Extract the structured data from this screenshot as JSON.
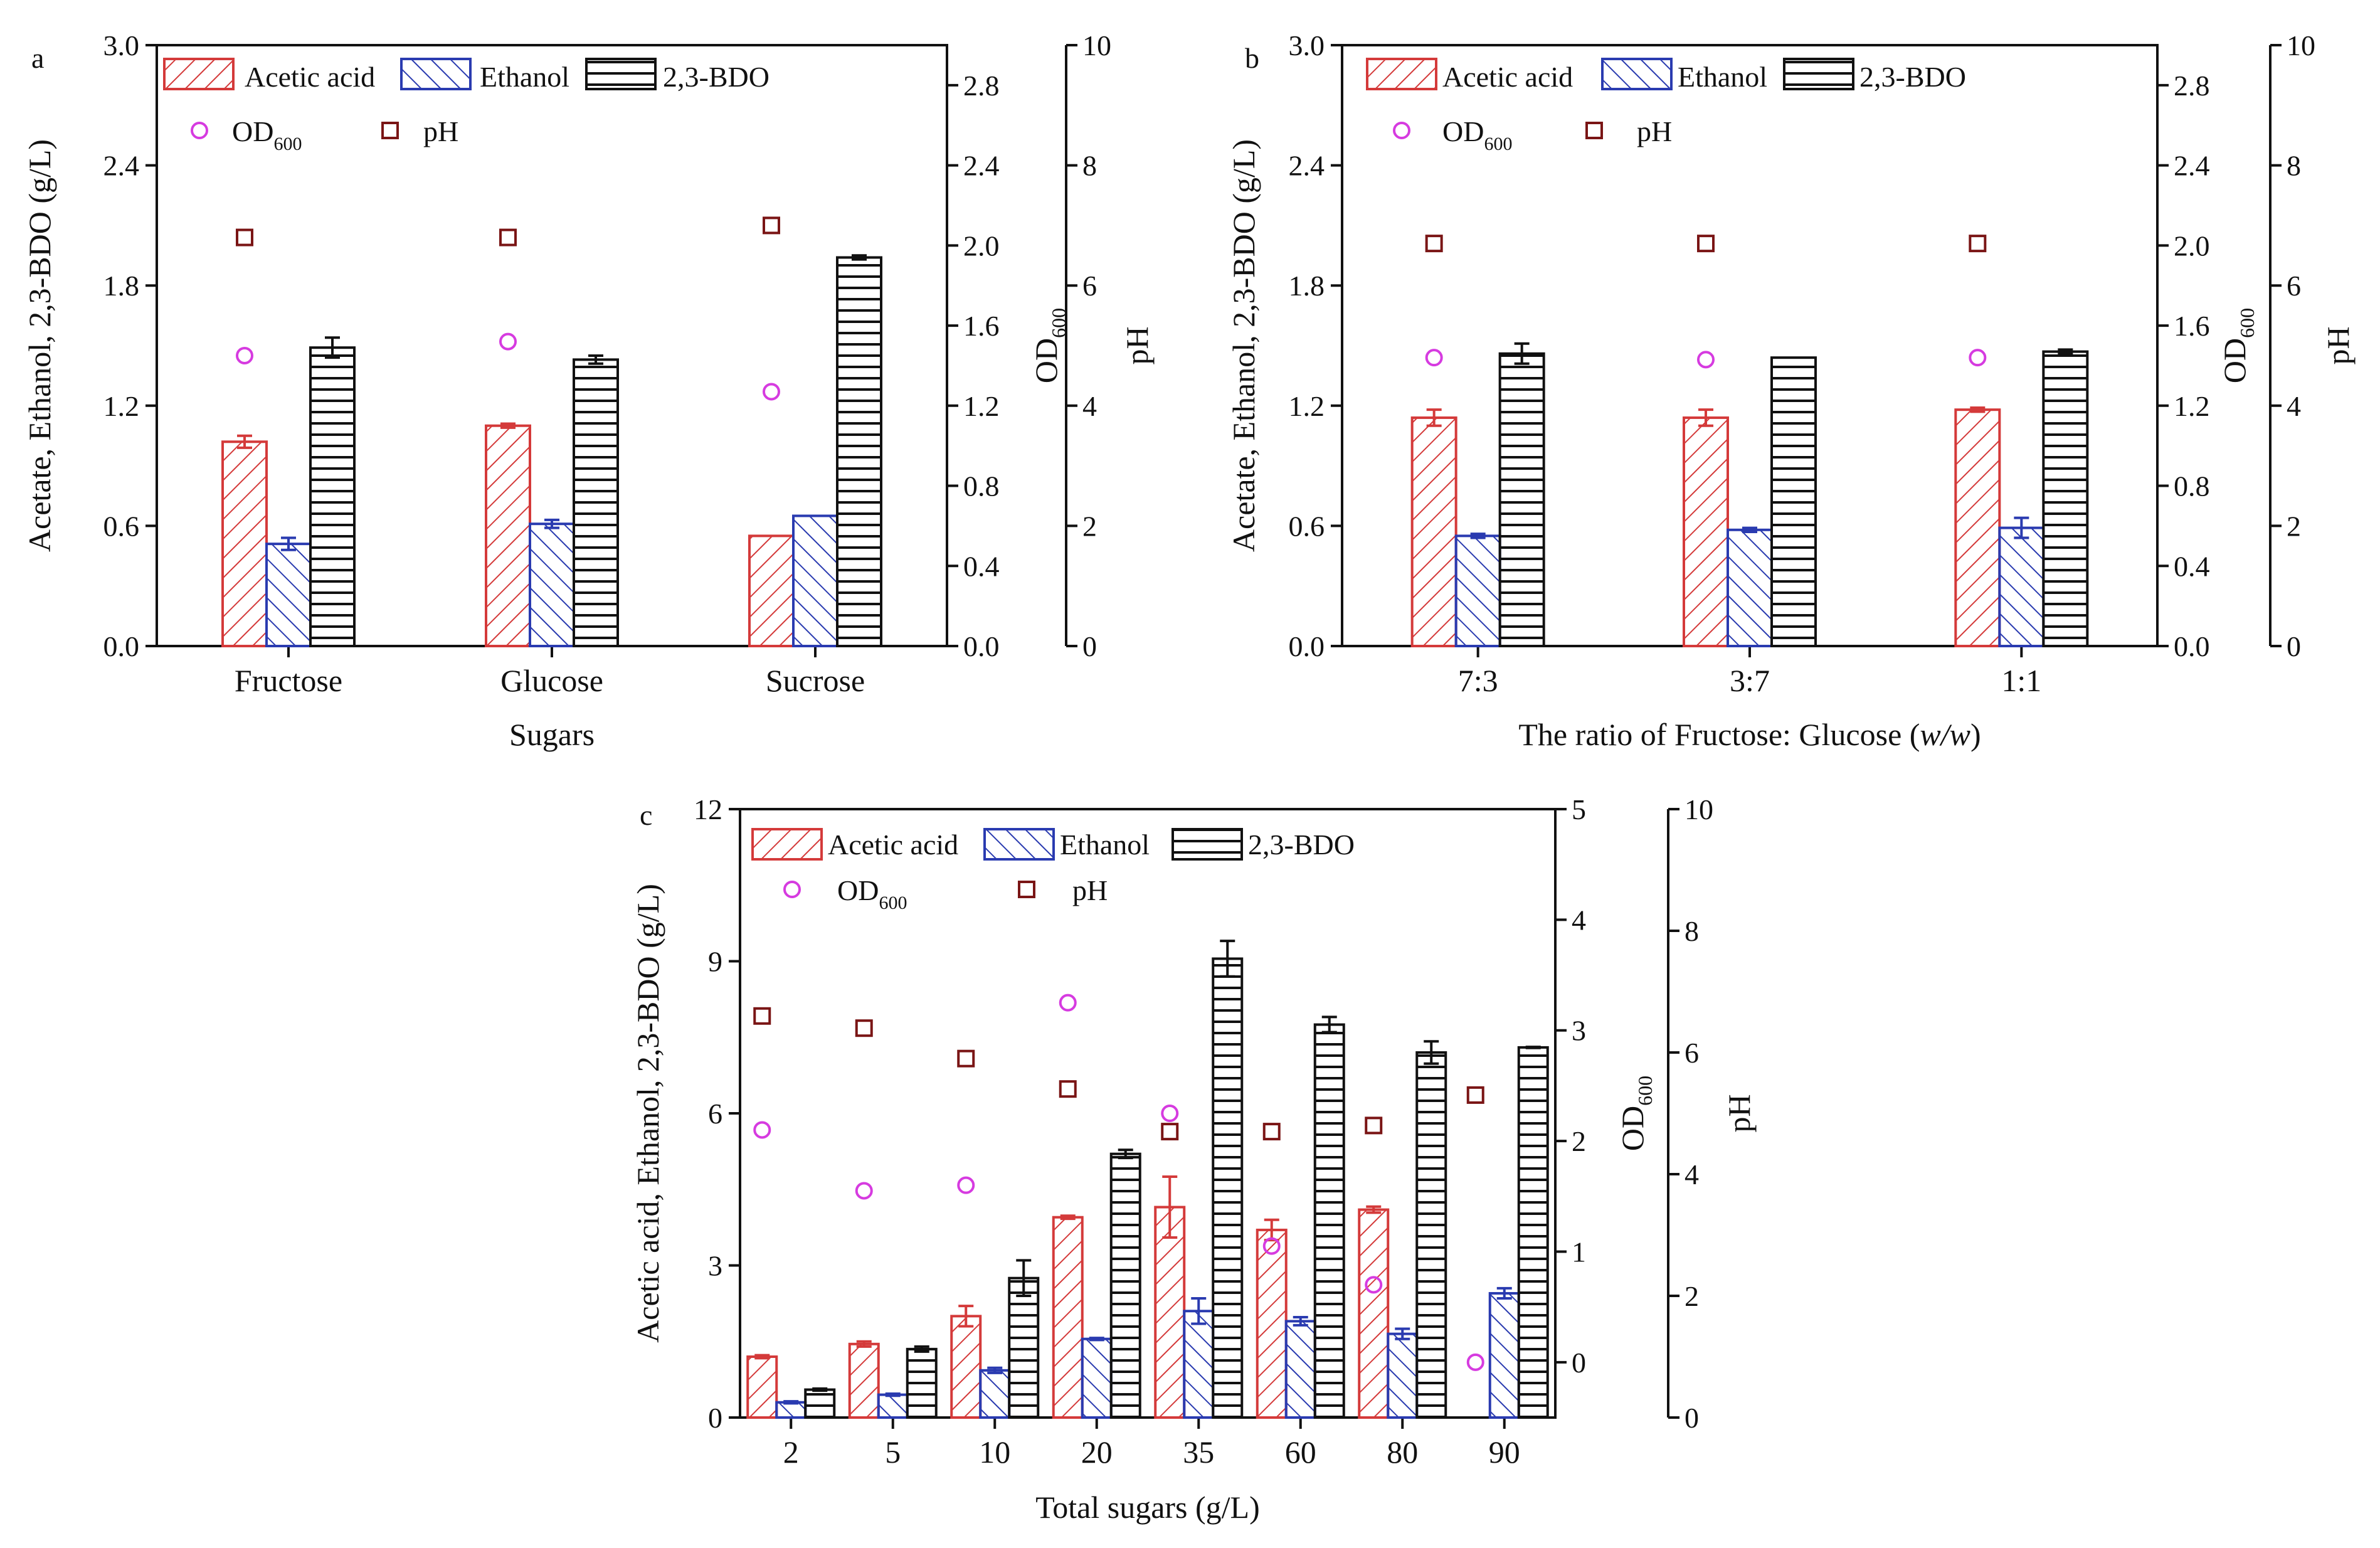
{
  "colors": {
    "acetic": "#d43a3a",
    "ethanol": "#2a3bb0",
    "bdo": "#111111",
    "od": "#d63be0",
    "ph": "#7a1515"
  },
  "legend": {
    "acetic": "Acetic acid",
    "ethanol": "Ethanol",
    "bdo": "2,3-BDO",
    "od_main": "OD",
    "od_sub": "600",
    "ph": "pH"
  },
  "chart_data": [
    {
      "panel": "a",
      "type": "bar",
      "xlabel": "Sugars",
      "ylabel": "Acetate, Ethanol, 2,3-BDO (g/L)",
      "categories": [
        "Fructose",
        "Glucose",
        "Sucrose"
      ],
      "ylim": [
        0,
        3.0
      ],
      "yticks": [
        "0.0",
        "0.6",
        "1.2",
        "1.8",
        "2.4",
        "3.0"
      ],
      "od_lim": [
        0,
        3.0
      ],
      "od_ticks": [
        "0.0",
        "0.4",
        "0.8",
        "1.2",
        "1.6",
        "2.0",
        "2.4",
        "2.8"
      ],
      "ph_lim": [
        0,
        10
      ],
      "ph_ticks": [
        "0",
        "2",
        "4",
        "6",
        "8",
        "10"
      ],
      "series": [
        {
          "name": "Acetic acid",
          "values": [
            1.02,
            1.1,
            0.55
          ],
          "errors": [
            0.03,
            0.01,
            0.0
          ]
        },
        {
          "name": "Ethanol",
          "values": [
            0.51,
            0.61,
            0.65
          ],
          "errors": [
            0.03,
            0.02,
            0.0
          ]
        },
        {
          "name": "2,3-BDO",
          "values": [
            1.49,
            1.43,
            1.94
          ],
          "errors": [
            0.05,
            0.02,
            0.01
          ]
        }
      ],
      "od600": [
        1.45,
        1.52,
        1.27
      ],
      "ph": [
        6.8,
        6.8,
        7.0
      ]
    },
    {
      "panel": "b",
      "type": "bar",
      "xlabel": "The ratio of Fructose: Glucose (w/w)",
      "xlabel_main": "The ratio of Fructose: Glucose (",
      "xlabel_italic": "w/w",
      "xlabel_end": ")",
      "ylabel": "Acetate, Ethanol, 2,3-BDO (g/L)",
      "categories": [
        "7:3",
        "3:7",
        "1:1"
      ],
      "ylim": [
        0,
        3.0
      ],
      "yticks": [
        "0.0",
        "0.6",
        "1.2",
        "1.8",
        "2.4",
        "3.0"
      ],
      "od_lim": [
        0,
        3.0
      ],
      "od_ticks": [
        "0.0",
        "0.4",
        "0.8",
        "1.2",
        "1.6",
        "2.0",
        "2.4",
        "2.8"
      ],
      "ph_lim": [
        0,
        10
      ],
      "ph_ticks": [
        "0",
        "2",
        "4",
        "6",
        "8",
        "10"
      ],
      "series": [
        {
          "name": "Acetic acid",
          "values": [
            1.14,
            1.14,
            1.18
          ],
          "errors": [
            0.04,
            0.04,
            0.01
          ]
        },
        {
          "name": "Ethanol",
          "values": [
            0.55,
            0.58,
            0.59
          ],
          "errors": [
            0.01,
            0.01,
            0.05
          ]
        },
        {
          "name": "2,3-BDO",
          "values": [
            1.46,
            1.44,
            1.47
          ],
          "errors": [
            0.05,
            0.0,
            0.01
          ]
        }
      ],
      "od600": [
        1.44,
        1.43,
        1.44
      ],
      "ph": [
        6.7,
        6.7,
        6.7
      ]
    },
    {
      "panel": "c",
      "type": "bar",
      "xlabel": "Total sugars (g/L)",
      "ylabel": "Acetic acid, Ethanol, 2,3-BDO (g/L)",
      "categories": [
        "2",
        "5",
        "10",
        "20",
        "35",
        "60",
        "80",
        "90"
      ],
      "ylim": [
        0,
        12
      ],
      "yticks": [
        "0",
        "3",
        "6",
        "9",
        "12"
      ],
      "od_lim": [
        -0.5,
        5
      ],
      "od_ticks": [
        "0",
        "1",
        "2",
        "3",
        "4",
        "5"
      ],
      "ph_lim": [
        0,
        10
      ],
      "ph_ticks": [
        "0",
        "2",
        "4",
        "6",
        "8",
        "10"
      ],
      "series": [
        {
          "name": "Acetic acid",
          "values": [
            1.2,
            1.45,
            2.0,
            3.95,
            4.15,
            3.7,
            4.1,
            null
          ],
          "errors": [
            0.03,
            0.05,
            0.2,
            0.03,
            0.6,
            0.2,
            0.06,
            null
          ]
        },
        {
          "name": "Ethanol",
          "values": [
            0.3,
            0.45,
            0.93,
            1.55,
            2.1,
            1.9,
            1.65,
            2.45
          ],
          "errors": [
            0.02,
            0.02,
            0.05,
            0.02,
            0.25,
            0.08,
            0.1,
            0.1
          ]
        },
        {
          "name": "2,3-BDO",
          "values": [
            0.55,
            1.35,
            2.75,
            5.2,
            9.05,
            7.75,
            7.2,
            7.3
          ],
          "errors": [
            0.02,
            0.05,
            0.35,
            0.08,
            0.35,
            0.15,
            0.22,
            0.01
          ]
        }
      ],
      "od600": [
        2.1,
        1.55,
        1.6,
        3.25,
        2.25,
        1.05,
        0.7,
        0.0
      ],
      "ph": [
        6.6,
        6.4,
        5.9,
        5.4,
        4.7,
        4.7,
        4.8,
        5.3
      ]
    }
  ]
}
